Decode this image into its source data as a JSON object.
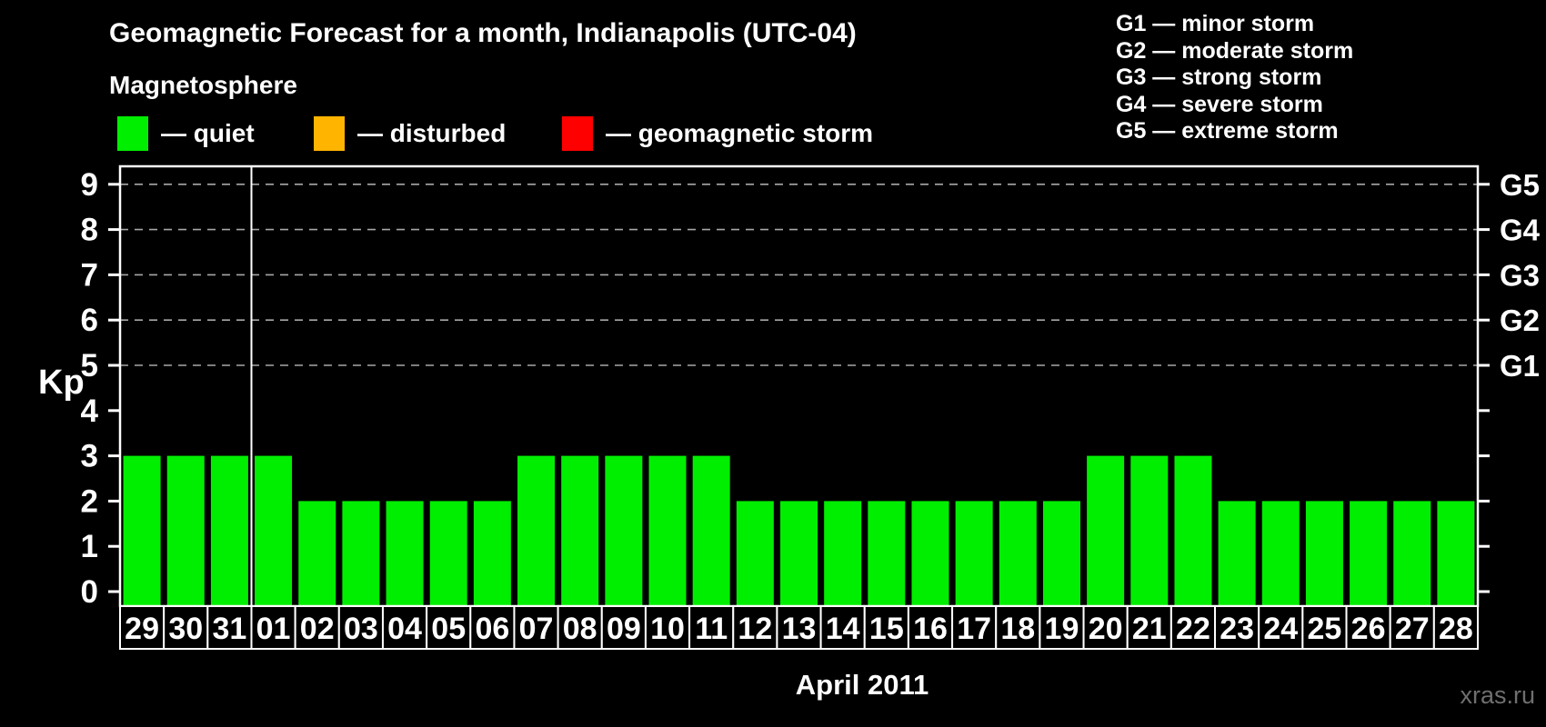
{
  "title": "Geomagnetic Forecast for a month, Indianapolis (UTC-04)",
  "legend": {
    "heading": "Magnetosphere",
    "items": [
      {
        "name": "quiet",
        "label": "— quiet",
        "color": "#00ee00"
      },
      {
        "name": "disturbed",
        "label": "— disturbed",
        "color": "#ffb400"
      },
      {
        "name": "geomagnetic-storm",
        "label": "— geomagnetic storm",
        "color": "#ff0000"
      }
    ]
  },
  "g_scale_legend": {
    "lines": [
      "G1 — minor storm",
      "G2 — moderate storm",
      "G3 — strong storm",
      "G4 — severe storm",
      "G5 — extreme storm"
    ]
  },
  "watermark": "xras.ru",
  "chart_data": {
    "type": "bar",
    "title": "Geomagnetic Forecast for a month, Indianapolis (UTC-04)",
    "xlabel": "April 2011",
    "ylabel": "Kp",
    "ylim": [
      0,
      9
    ],
    "yticks": [
      0,
      1,
      2,
      3,
      4,
      5,
      6,
      7,
      8,
      9
    ],
    "gridlines_at": [
      5,
      6,
      7,
      8,
      9
    ],
    "right_axis": [
      {
        "label": "G1",
        "value": 5
      },
      {
        "label": "G2",
        "value": 6
      },
      {
        "label": "G3",
        "value": 7
      },
      {
        "label": "G4",
        "value": 8
      },
      {
        "label": "G5",
        "value": 9
      }
    ],
    "categories": [
      "29",
      "30",
      "31",
      "01",
      "02",
      "03",
      "04",
      "05",
      "06",
      "07",
      "08",
      "09",
      "10",
      "11",
      "12",
      "13",
      "14",
      "15",
      "16",
      "17",
      "18",
      "19",
      "20",
      "21",
      "22",
      "23",
      "24",
      "25",
      "26",
      "27",
      "28"
    ],
    "values": [
      3,
      3,
      3,
      3,
      2,
      2,
      2,
      2,
      2,
      3,
      3,
      3,
      3,
      3,
      2,
      2,
      2,
      2,
      2,
      2,
      2,
      2,
      3,
      3,
      3,
      2,
      2,
      2,
      2,
      2,
      2
    ],
    "bar_color": "#00ee00",
    "month_separator_after_index": 2,
    "grid": "dashed horizontal lines at G-level thresholds only",
    "legend_position": "top-left",
    "axis_color": "#ffffff",
    "background": "#000000"
  }
}
